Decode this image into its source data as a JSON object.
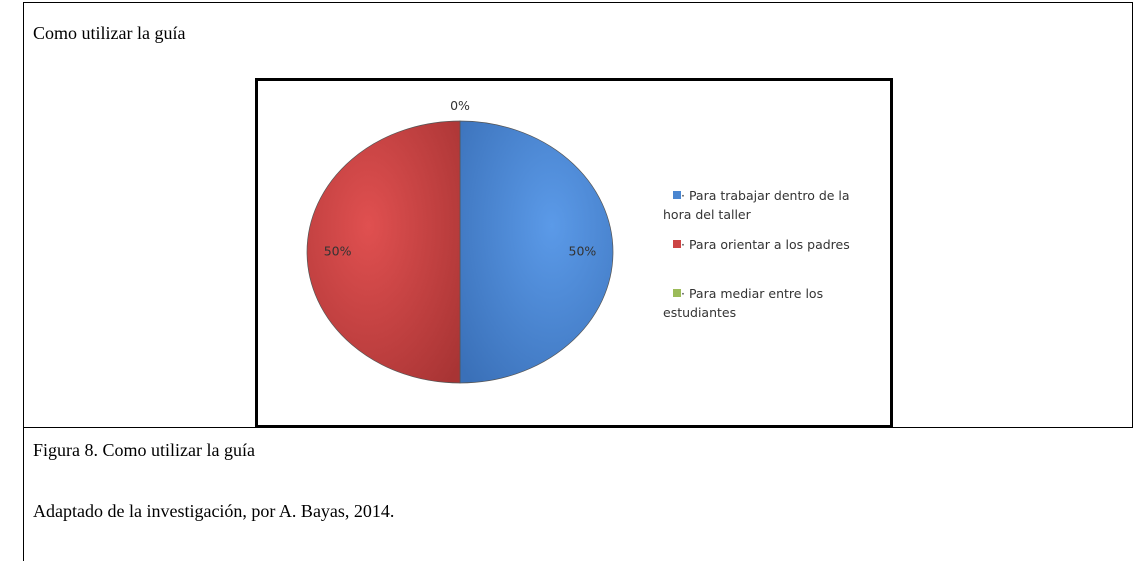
{
  "header": {
    "title": "Como utilizar la guía"
  },
  "chart_data": {
    "type": "pie",
    "categories": [
      "· Para trabajar dentro de la hora del taller",
      "· Para orientar a los padres",
      "· Para mediar entre los estudiantes"
    ],
    "values": [
      50,
      50,
      0
    ],
    "value_labels": [
      "50%",
      "50%",
      "0%"
    ],
    "colors": [
      "#4a86d0",
      "#cc4444",
      "#9bbb59"
    ],
    "legend": "right"
  },
  "caption": {
    "figure": "Figura 8. Como utilizar la guía",
    "source": "Adaptado de la investigación, por A. Bayas, 2014."
  }
}
